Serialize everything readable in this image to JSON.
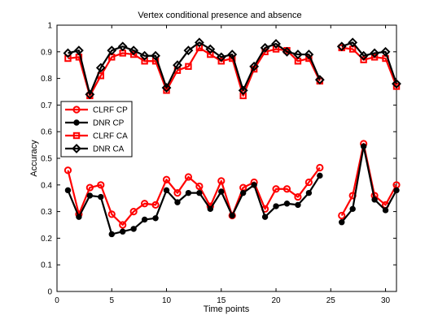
{
  "chart_data": {
    "type": "line",
    "title": "Vertex conditional presence and absence",
    "xlabel": "Time points",
    "ylabel": "Accuracy",
    "xlim": [
      0,
      31
    ],
    "ylim": [
      0,
      1
    ],
    "xticks": [
      0,
      5,
      10,
      15,
      20,
      25,
      30
    ],
    "yticks": [
      0,
      0.1,
      0.2,
      0.3,
      0.4,
      0.5,
      0.6,
      0.7,
      0.8,
      0.9,
      1
    ],
    "ytick_labels": [
      "0",
      "0.1",
      "0.2",
      "0.3",
      "0.4",
      "0.5",
      "0.6",
      "0.7",
      "0.8",
      "0.9",
      "1"
    ],
    "grid": false,
    "legend_position": "middle-left",
    "x": [
      1,
      2,
      3,
      4,
      5,
      6,
      7,
      8,
      9,
      10,
      11,
      12,
      13,
      14,
      15,
      16,
      17,
      18,
      19,
      20,
      21,
      22,
      23,
      24,
      25,
      26,
      27,
      28,
      29,
      30,
      31
    ],
    "series": [
      {
        "name": "CLRF CP",
        "color": "#ff0000",
        "marker": "circle",
        "values": [
          0.455,
          0.29,
          0.39,
          0.4,
          0.29,
          0.25,
          0.3,
          0.33,
          0.325,
          0.42,
          0.37,
          0.43,
          0.395,
          0.32,
          0.415,
          0.285,
          0.39,
          0.41,
          0.31,
          0.385,
          0.385,
          0.355,
          0.41,
          0.465,
          null,
          0.285,
          0.36,
          0.555,
          0.36,
          0.325,
          0.4
        ]
      },
      {
        "name": "DNR CP",
        "color": "#000000",
        "marker": "dot",
        "values": [
          0.38,
          0.28,
          0.36,
          0.355,
          0.215,
          0.225,
          0.235,
          0.27,
          0.275,
          0.38,
          0.335,
          0.37,
          0.37,
          0.31,
          0.375,
          0.285,
          0.37,
          0.4,
          0.28,
          0.32,
          0.33,
          0.325,
          0.37,
          0.435,
          null,
          0.26,
          0.31,
          0.545,
          0.345,
          0.305,
          0.38
        ]
      },
      {
        "name": "CLRF CA",
        "color": "#ff0000",
        "marker": "square",
        "values": [
          0.875,
          0.88,
          0.735,
          0.81,
          0.88,
          0.895,
          0.89,
          0.865,
          0.865,
          0.755,
          0.83,
          0.845,
          0.915,
          0.89,
          0.865,
          0.875,
          0.735,
          0.835,
          0.9,
          0.91,
          0.905,
          0.865,
          0.875,
          0.79,
          null,
          0.915,
          0.91,
          0.87,
          0.88,
          0.875,
          0.77
        ]
      },
      {
        "name": "DNR CA",
        "color": "#000000",
        "marker": "diamond",
        "values": [
          0.895,
          0.905,
          0.74,
          0.84,
          0.905,
          0.92,
          0.905,
          0.885,
          0.885,
          0.765,
          0.85,
          0.905,
          0.935,
          0.91,
          0.88,
          0.89,
          0.755,
          0.845,
          0.915,
          0.93,
          0.9,
          0.89,
          0.89,
          0.795,
          null,
          0.92,
          0.935,
          0.885,
          0.895,
          0.9,
          0.78
        ]
      }
    ]
  }
}
